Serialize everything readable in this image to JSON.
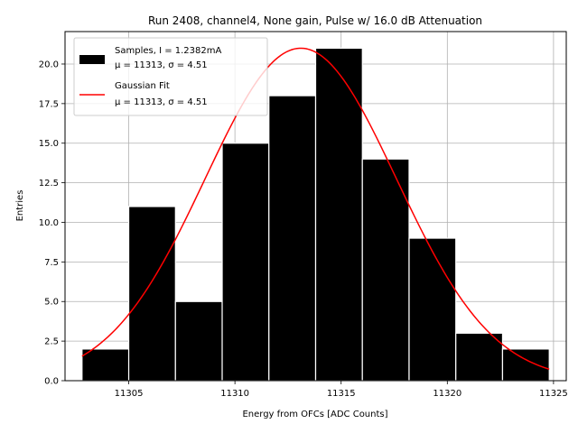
{
  "chart_data": {
    "type": "bar",
    "title": "Run 2408, channel4, None gain, Pulse w/ 16.0 dB Attenuation",
    "xlabel": "Energy from OFCs [ADC Counts]",
    "ylabel": "Entries",
    "xlim": [
      11302.0,
      11325.6
    ],
    "ylim": [
      0,
      22.05
    ],
    "grid": true,
    "legend_position": "top-left",
    "bins": [
      {
        "left": 11302.8,
        "right": 11305.0,
        "count": 2
      },
      {
        "left": 11305.0,
        "right": 11307.2,
        "count": 11
      },
      {
        "left": 11307.2,
        "right": 11309.4,
        "count": 5
      },
      {
        "left": 11309.4,
        "right": 11311.6,
        "count": 15
      },
      {
        "left": 11311.6,
        "right": 11313.8,
        "count": 18
      },
      {
        "left": 11313.8,
        "right": 11316.0,
        "count": 21
      },
      {
        "left": 11316.0,
        "right": 11318.2,
        "count": 14
      },
      {
        "left": 11318.2,
        "right": 11320.4,
        "count": 9
      },
      {
        "left": 11320.4,
        "right": 11322.6,
        "count": 3
      },
      {
        "left": 11322.6,
        "right": 11324.8,
        "count": 2
      }
    ],
    "x_ticks": [
      11305,
      11310,
      11315,
      11320,
      11325
    ],
    "y_ticks": [
      0.0,
      2.5,
      5.0,
      7.5,
      10.0,
      12.5,
      15.0,
      17.5,
      20.0
    ],
    "x_tick_labels": [
      "11305",
      "11310",
      "11315",
      "11320",
      "11325"
    ],
    "y_tick_labels": [
      "0.0",
      "2.5",
      "5.0",
      "7.5",
      "10.0",
      "12.5",
      "15.0",
      "17.5",
      "20.0"
    ],
    "fit": {
      "type": "gaussian",
      "amplitude": 21.0,
      "mu": 11313.1,
      "sigma": 4.51,
      "x_range": [
        11302.8,
        11324.8
      ],
      "color": "#ff0000"
    },
    "series": [
      {
        "name": "Samples, I = 1.2382mA",
        "stats": "μ = 11313, σ = 4.51",
        "color": "#000000"
      },
      {
        "name": "Gaussian Fit",
        "stats": "μ = 11313, σ = 4.51",
        "color": "#ff0000"
      }
    ]
  }
}
